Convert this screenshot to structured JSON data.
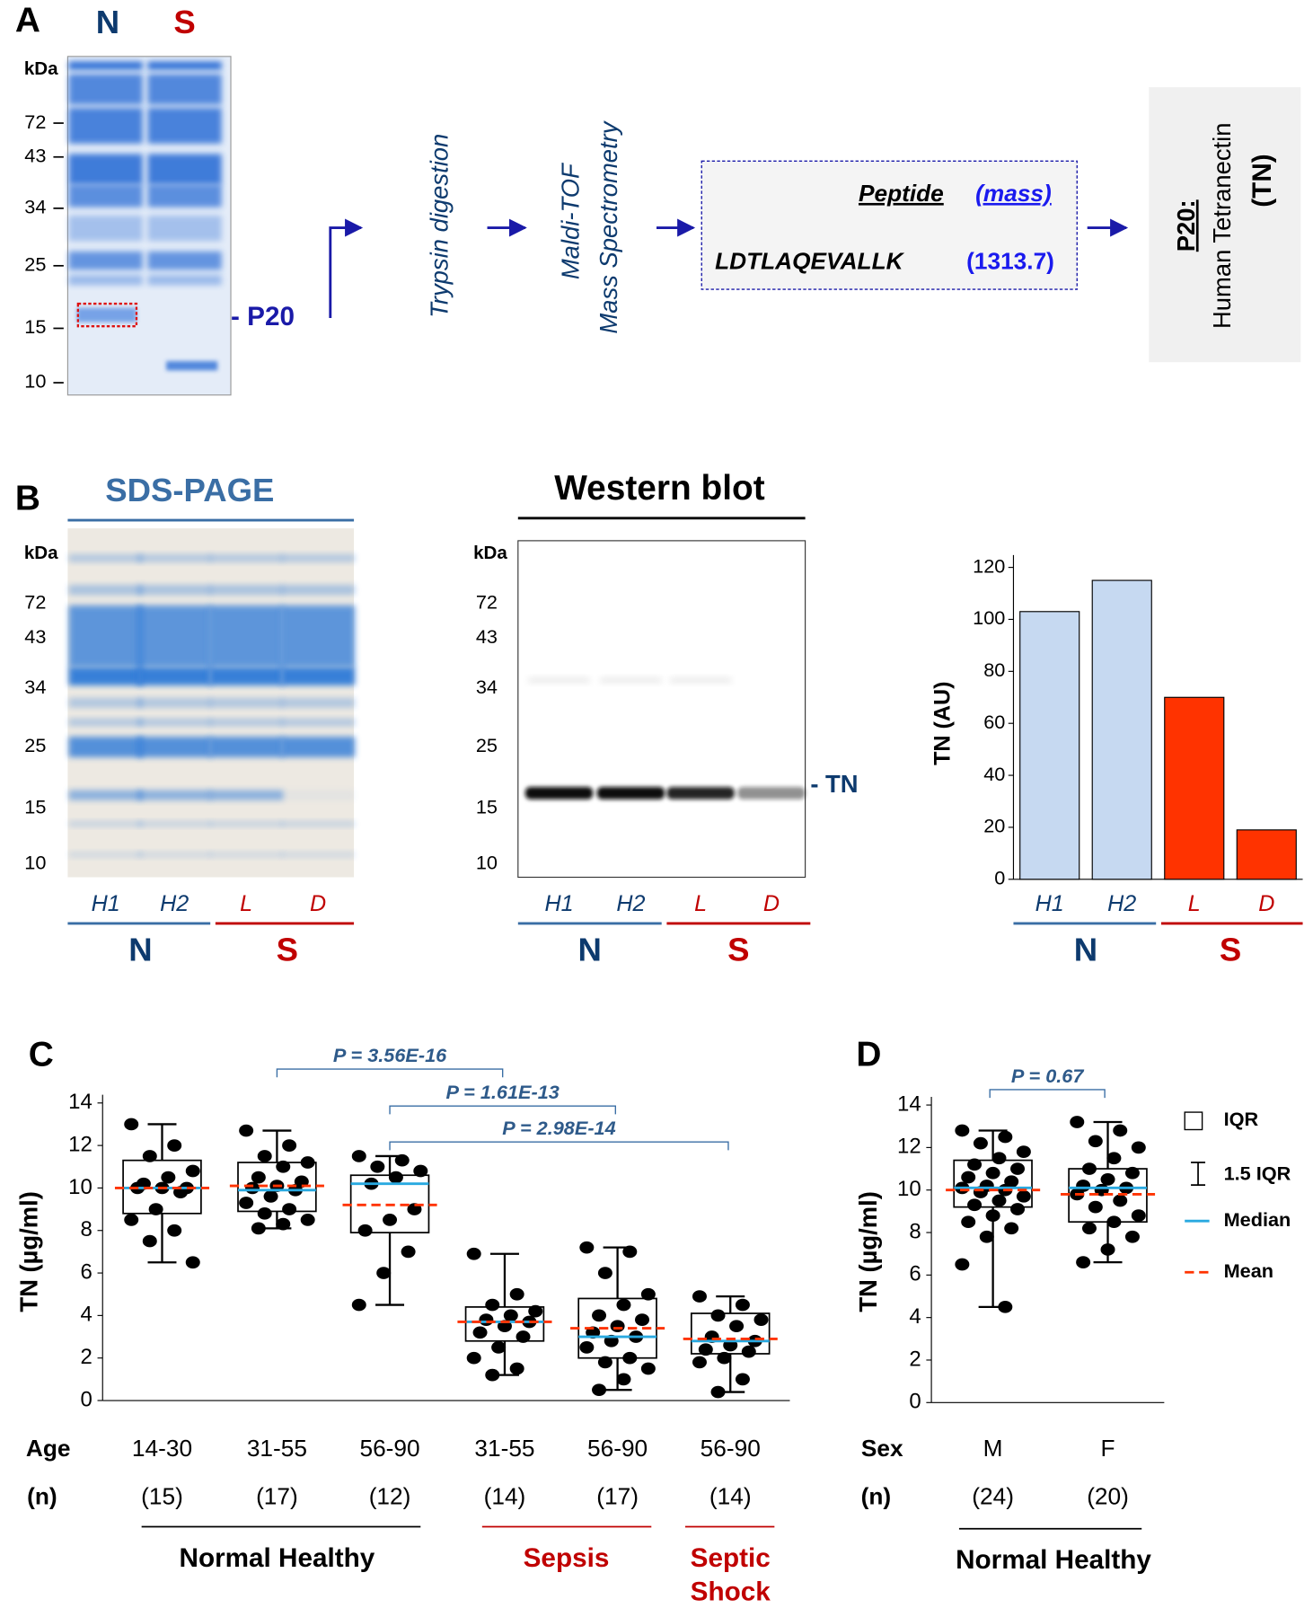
{
  "panel_labels": [
    "A",
    "B",
    "C",
    "D"
  ],
  "panel_a": {
    "lanes": [
      "N",
      "S"
    ],
    "kda": "kDa",
    "markers": [
      "72",
      "43",
      "34",
      "25",
      "15",
      "10"
    ],
    "band": "- P20",
    "steps": [
      "Trypsin  digestion",
      "Maldi-TOF",
      "Mass Spectrometry"
    ],
    "peptide_header": "Peptide",
    "mass_header": "(mass)",
    "peptide": "LDTLAQEVALLK",
    "mass": "(1313.7)",
    "result_label": "P20:",
    "result_name": "Human Tetranectin",
    "result_abbr": "(TN)"
  },
  "panel_b": {
    "sds_title": "SDS-PAGE",
    "wb_title": "Western blot",
    "kda": "kDa",
    "markers": [
      "72",
      "43",
      "34",
      "25",
      "15",
      "10"
    ],
    "wb_band": "- TN",
    "lanes": [
      "H1",
      "H2",
      "L",
      "D"
    ],
    "groups": [
      "N",
      "S"
    ]
  },
  "chart_data": [
    {
      "type": "bar",
      "categories": [
        "H1",
        "H2",
        "L",
        "D"
      ],
      "values": [
        103,
        115,
        70,
        19
      ],
      "colors": [
        "#c6d9f1",
        "#c6d9f1",
        "#ff3300",
        "#ff3300"
      ],
      "y_label": "TN (AU)",
      "ylim": [
        0,
        120
      ],
      "yticks": [
        0,
        20,
        40,
        60,
        80,
        100,
        120
      ],
      "groups": [
        "N",
        "S"
      ]
    },
    {
      "type": "box",
      "y_label": "TN (µg/ml)",
      "x_row_label": "Age",
      "n_row_label": "(n)",
      "ylim": [
        0,
        14
      ],
      "yticks": [
        0,
        2,
        4,
        6,
        8,
        10,
        12,
        14
      ],
      "annotations": [
        "P = 3.56E-16",
        "P = 1.61E-13",
        "P = 2.98E-14"
      ],
      "groups": [
        {
          "name": "Normal Healthy",
          "color": "#000000"
        },
        {
          "name": "Sepsis",
          "color": "#c00000"
        },
        {
          "name": "Septic Shock",
          "color": "#c00000"
        }
      ],
      "boxes": [
        {
          "category": "14-30",
          "n": "(15)",
          "min": 6.5,
          "q1": 8.8,
          "median": 10,
          "q3": 11.3,
          "max": 13,
          "mean": 10,
          "points": [
            13,
            12,
            11.5,
            10.8,
            10.5,
            10.2,
            10,
            10,
            10,
            9.8,
            9,
            8.5,
            8,
            7.5,
            6.5
          ]
        },
        {
          "category": "31-55",
          "n": "(17)",
          "min": 8.1,
          "q1": 8.9,
          "median": 9.9,
          "q3": 11.2,
          "max": 12.7,
          "mean": 10.1,
          "points": [
            12.7,
            12,
            11.5,
            11.2,
            11,
            10.5,
            10.3,
            10.1,
            10,
            9.9,
            9.6,
            9.3,
            9,
            8.8,
            8.5,
            8.3,
            8.1
          ]
        },
        {
          "category": "56-90",
          "n": "(12)",
          "min": 4.5,
          "q1": 7.9,
          "median": 10.2,
          "q3": 10.6,
          "max": 11.5,
          "mean": 9.2,
          "points": [
            11.5,
            11.3,
            11,
            10.8,
            10.5,
            10.2,
            9,
            8.5,
            8,
            7,
            6,
            4.5
          ]
        },
        {
          "category": "31-55",
          "n": "(14)",
          "min": 1.2,
          "q1": 2.8,
          "median": 3.7,
          "q3": 4.4,
          "max": 6.9,
          "mean": 3.7,
          "points": [
            6.9,
            5,
            4.5,
            4.2,
            4,
            3.8,
            3.7,
            3.5,
            3.2,
            3,
            2.5,
            2,
            1.5,
            1.2
          ]
        },
        {
          "category": "56-90",
          "n": "(17)",
          "min": 0.5,
          "q1": 2,
          "median": 3,
          "q3": 4.8,
          "max": 7.2,
          "mean": 3.4,
          "points": [
            7.2,
            7,
            6,
            5,
            4.5,
            4,
            3.8,
            3.5,
            3.2,
            3,
            2.8,
            2.5,
            2,
            1.8,
            1.5,
            1,
            0.5
          ]
        },
        {
          "category": "56-90",
          "n": "(14)",
          "min": 0.4,
          "q1": 2.2,
          "median": 2.8,
          "q3": 4.1,
          "max": 4.9,
          "mean": 2.9,
          "points": [
            4.9,
            4.5,
            4,
            3.8,
            3.5,
            3,
            2.8,
            2.6,
            2.4,
            2.3,
            2,
            1.8,
            1,
            0.4
          ]
        }
      ]
    },
    {
      "type": "box",
      "y_label": "TN (µg/ml)",
      "x_row_label": "Sex",
      "n_row_label": "(n)",
      "ylim": [
        0,
        14
      ],
      "yticks": [
        0,
        2,
        4,
        6,
        8,
        10,
        12,
        14
      ],
      "annotations": [
        "P = 0.67"
      ],
      "legend": [
        "IQR",
        "1.5 IQR",
        "Median",
        "Mean"
      ],
      "groups": [
        {
          "name": "Normal Healthy",
          "color": "#000000"
        }
      ],
      "boxes": [
        {
          "category": "M",
          "n": "(24)",
          "min": 4.5,
          "q1": 9.2,
          "median": 10.1,
          "q3": 11.4,
          "max": 12.8,
          "mean": 10,
          "points": [
            12.8,
            12.5,
            12.2,
            11.8,
            11.5,
            11.2,
            11,
            10.8,
            10.6,
            10.4,
            10.2,
            10.1,
            10,
            9.9,
            9.7,
            9.5,
            9.3,
            9.1,
            8.8,
            8.5,
            8.2,
            7.8,
            6.5,
            4.5
          ]
        },
        {
          "category": "F",
          "n": "(20)",
          "min": 6.6,
          "q1": 8.5,
          "median": 10.1,
          "q3": 11,
          "max": 13.2,
          "mean": 9.8,
          "points": [
            13.2,
            12.8,
            12.3,
            12,
            11.5,
            11,
            10.8,
            10.5,
            10.2,
            10.1,
            10,
            9.8,
            9.5,
            9.2,
            8.8,
            8.5,
            8.2,
            7.8,
            7.2,
            6.6
          ]
        }
      ]
    }
  ]
}
